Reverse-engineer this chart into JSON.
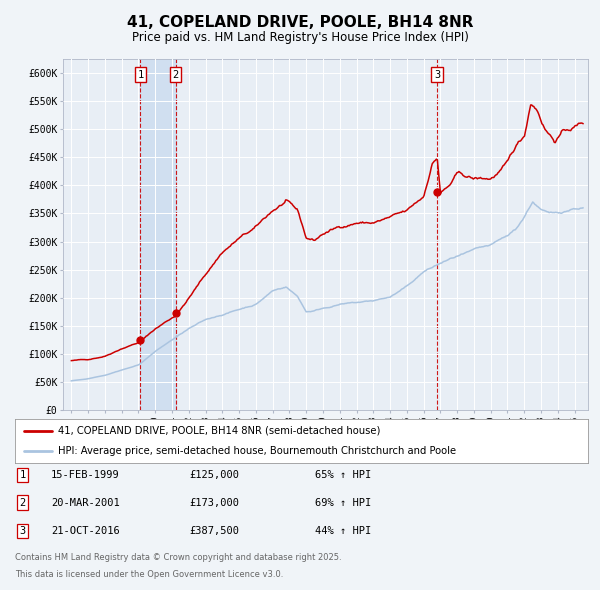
{
  "title": "41, COPELAND DRIVE, POOLE, BH14 8NR",
  "subtitle": "Price paid vs. HM Land Registry's House Price Index (HPI)",
  "legend_line1": "41, COPELAND DRIVE, POOLE, BH14 8NR (semi-detached house)",
  "legend_line2": "HPI: Average price, semi-detached house, Bournemouth Christchurch and Poole",
  "hpi_color": "#aac4e0",
  "price_color": "#cc0000",
  "background_color": "#f0f4f8",
  "plot_bg_color": "#e8eef5",
  "grid_color": "#ffffff",
  "vline_color": "#cc0000",
  "vband_color": "#d0dff0",
  "ylim": [
    0,
    625000
  ],
  "yticks": [
    0,
    50000,
    100000,
    150000,
    200000,
    250000,
    300000,
    350000,
    400000,
    450000,
    500000,
    550000,
    600000
  ],
  "ytick_labels": [
    "£0",
    "£50K",
    "£100K",
    "£150K",
    "£200K",
    "£250K",
    "£300K",
    "£350K",
    "£400K",
    "£450K",
    "£500K",
    "£550K",
    "£600K"
  ],
  "transactions": [
    {
      "num": 1,
      "date": "15-FEB-1999",
      "date_x": 1999.12,
      "price": 125000,
      "pct": "65%",
      "dir": "↑"
    },
    {
      "num": 2,
      "date": "20-MAR-2001",
      "date_x": 2001.22,
      "price": 173000,
      "pct": "69%",
      "dir": "↑"
    },
    {
      "num": 3,
      "date": "21-OCT-2016",
      "date_x": 2016.81,
      "price": 387500,
      "pct": "44%",
      "dir": "↑"
    }
  ],
  "footer_line1": "Contains HM Land Registry data © Crown copyright and database right 2025.",
  "footer_line2": "This data is licensed under the Open Government Licence v3.0.",
  "xlim_start": 1994.5,
  "xlim_end": 2025.8,
  "price_key_years": [
    1995,
    1996,
    1997,
    1998,
    1999.12,
    2000,
    2001.22,
    2002,
    2003,
    2004,
    2005,
    2006,
    2007,
    2007.8,
    2008.5,
    2009,
    2009.5,
    2010,
    2011,
    2012,
    2013,
    2014,
    2015,
    2016.0,
    2016.5,
    2016.81,
    2017.0,
    2017.5,
    2018,
    2018.5,
    2019,
    2020,
    2021,
    2021.5,
    2022.0,
    2022.4,
    2022.8,
    2023.2,
    2023.8,
    2024.2,
    2024.8,
    2025.5
  ],
  "price_key_vals": [
    88000,
    90000,
    97000,
    112000,
    125000,
    148000,
    173000,
    205000,
    248000,
    290000,
    315000,
    332000,
    362000,
    378000,
    356000,
    308000,
    304000,
    316000,
    328000,
    338000,
    338000,
    346000,
    353000,
    378000,
    438000,
    450000,
    387500,
    398000,
    418000,
    413000,
    408000,
    408000,
    432000,
    460000,
    478000,
    540000,
    528000,
    500000,
    478000,
    492000,
    500000,
    510000
  ],
  "hpi_key_years": [
    1995,
    1996,
    1997,
    1998,
    1999,
    2000,
    2001,
    2002,
    2003,
    2004,
    2005,
    2006,
    2007,
    2007.8,
    2008.5,
    2009,
    2009.5,
    2010,
    2011,
    2012,
    2013,
    2014,
    2015,
    2016,
    2017,
    2018,
    2019,
    2020,
    2021,
    2021.5,
    2022.0,
    2022.5,
    2023.0,
    2023.5,
    2024,
    2025,
    2025.5
  ],
  "hpi_key_vals": [
    52000,
    56000,
    63000,
    73000,
    82000,
    107000,
    128000,
    148000,
    163000,
    173000,
    183000,
    193000,
    218000,
    226000,
    208000,
    181000,
    183000,
    188000,
    196000,
    198000,
    201000,
    208000,
    226000,
    253000,
    268000,
    280000,
    288000,
    293000,
    308000,
    320000,
    342000,
    370000,
    355000,
    347000,
    348000,
    358000,
    360000
  ]
}
